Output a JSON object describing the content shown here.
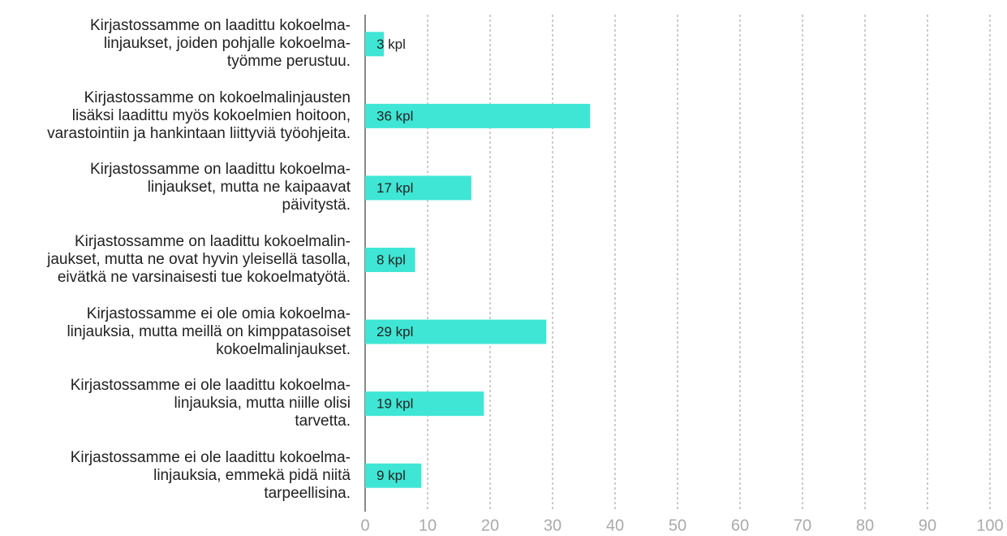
{
  "chart_data": {
    "type": "barh",
    "categories": [
      "Kirjastossamme on laadittu kokoelma-\nlinjaukset, joiden pohjalle kokoelma-\ntyömme perustuu.",
      "Kirjastossamme on kokoelmalinjausten\nlisäksi laadittu myös kokoelmien hoitoon,\nvarastointiin ja hankintaan liittyviä työohjeita.",
      "Kirjastossamme on laadittu kokoelma-\nlinjaukset, mutta ne kaipaavat\npäivitystä.",
      "Kirjastossamme on laadittu kokoelmalin-\njaukset, mutta ne ovat hyvin yleisellä tasolla,\neivätkä ne varsinaisesti tue kokoelmatyötä.",
      "Kirjastossamme ei ole omia kokoelma-\nlinjauksia, mutta meillä on kimppatasoiset\nkokoelmalinjaukset.",
      "Kirjastossamme ei ole laadittu kokoelma-\nlinjauksia, mutta niille olisi\ntarvetta.",
      "Kirjastossamme ei ole laadittu kokoelma-\nlinjauksia, emmekä pidä niitä\ntarpeellisina."
    ],
    "values": [
      3,
      36,
      17,
      8,
      29,
      19,
      9
    ],
    "value_labels": [
      "3 kpl",
      "36 kpl",
      "17 kpl",
      "8 kpl",
      "29 kpl",
      "19 kpl",
      "9 kpl"
    ],
    "color": "#3fe6d5",
    "xlim": [
      0,
      100
    ],
    "xticks": [
      0,
      10,
      20,
      30,
      40,
      50,
      60,
      70,
      80,
      90,
      100
    ],
    "grid": true
  }
}
